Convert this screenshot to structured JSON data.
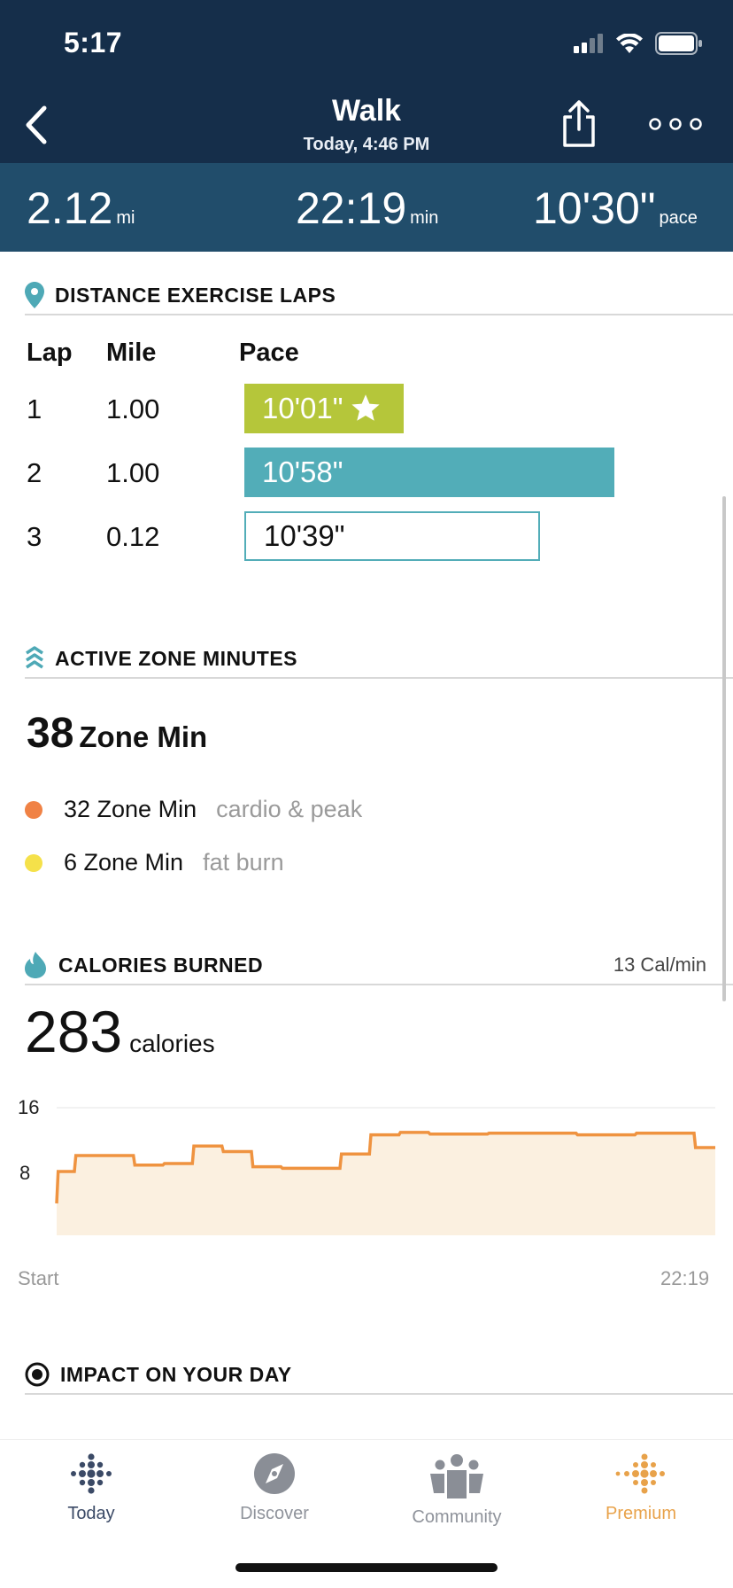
{
  "status": {
    "time": "5:17"
  },
  "header": {
    "title": "Walk",
    "subtitle": "Today, 4:46 PM"
  },
  "stats": {
    "distance": {
      "value": "2.12",
      "unit": "mi"
    },
    "duration": {
      "value": "22:19",
      "unit": "min"
    },
    "pace": {
      "value": "10'30\"",
      "unit": "pace"
    }
  },
  "laps": {
    "title": "DISTANCE EXERCISE LAPS",
    "columns": [
      "Lap",
      "Mile",
      "Pace"
    ],
    "rows": [
      {
        "lap": "1",
        "mile": "1.00",
        "pace": "10'01\"",
        "best": true,
        "fraction": 0.43
      },
      {
        "lap": "2",
        "mile": "1.00",
        "pace": "10'58\"",
        "best": false,
        "fraction": 1.0
      },
      {
        "lap": "3",
        "mile": "0.12",
        "pace": "10'39\"",
        "best": false,
        "fraction": 0.8
      }
    ],
    "colors": {
      "best": "#b5c63a",
      "normal": "#52adb8"
    }
  },
  "zones": {
    "title": "ACTIVE ZONE MINUTES",
    "total_value": "38",
    "total_unit": "Zone Min",
    "items": [
      {
        "value": "32 Zone Min",
        "desc": "cardio & peak",
        "color": "#f08245"
      },
      {
        "value": "6 Zone Min",
        "desc": "fat burn",
        "color": "#f5e14a"
      }
    ]
  },
  "calories": {
    "title": "CALORIES BURNED",
    "rate": "13 Cal/min",
    "total_value": "283",
    "total_unit": "calories",
    "start_label": "Start",
    "end_label": "22:19"
  },
  "chart_data": {
    "type": "area",
    "ylim": [
      0,
      16
    ],
    "yticks": [
      "16",
      "8"
    ],
    "xlim": [
      0,
      22.32
    ],
    "x": [
      0,
      0.05,
      0.6,
      0.65,
      2.6,
      2.65,
      3.6,
      3.65,
      4.6,
      4.65,
      5.6,
      5.65,
      6.6,
      6.65,
      7.6,
      7.65,
      9.6,
      9.65,
      10.6,
      10.65,
      11.6,
      11.65,
      12.6,
      12.65,
      14.6,
      14.65,
      17.6,
      17.65,
      19.6,
      19.65,
      21.6,
      21.65,
      22.32
    ],
    "y": [
      4,
      8,
      8,
      10,
      10,
      8.8,
      8.8,
      9,
      9,
      11.2,
      11.2,
      10.5,
      10.5,
      8.6,
      8.6,
      8.4,
      8.4,
      10.2,
      10.2,
      12.6,
      12.6,
      12.9,
      12.9,
      12.7,
      12.7,
      12.8,
      12.8,
      12.6,
      12.6,
      12.8,
      12.8,
      11,
      11
    ],
    "color": "#ef9340",
    "fill": "#fbf0e0"
  },
  "impact": {
    "title": "IMPACT ON YOUR DAY"
  },
  "tabs": [
    {
      "label": "Today",
      "icon": "fitbit-dots-icon",
      "active": true
    },
    {
      "label": "Discover",
      "icon": "compass-icon",
      "active": false
    },
    {
      "label": "Community",
      "icon": "community-icon",
      "active": false
    },
    {
      "label": "Premium",
      "icon": "premium-dots-icon",
      "active": false
    }
  ]
}
